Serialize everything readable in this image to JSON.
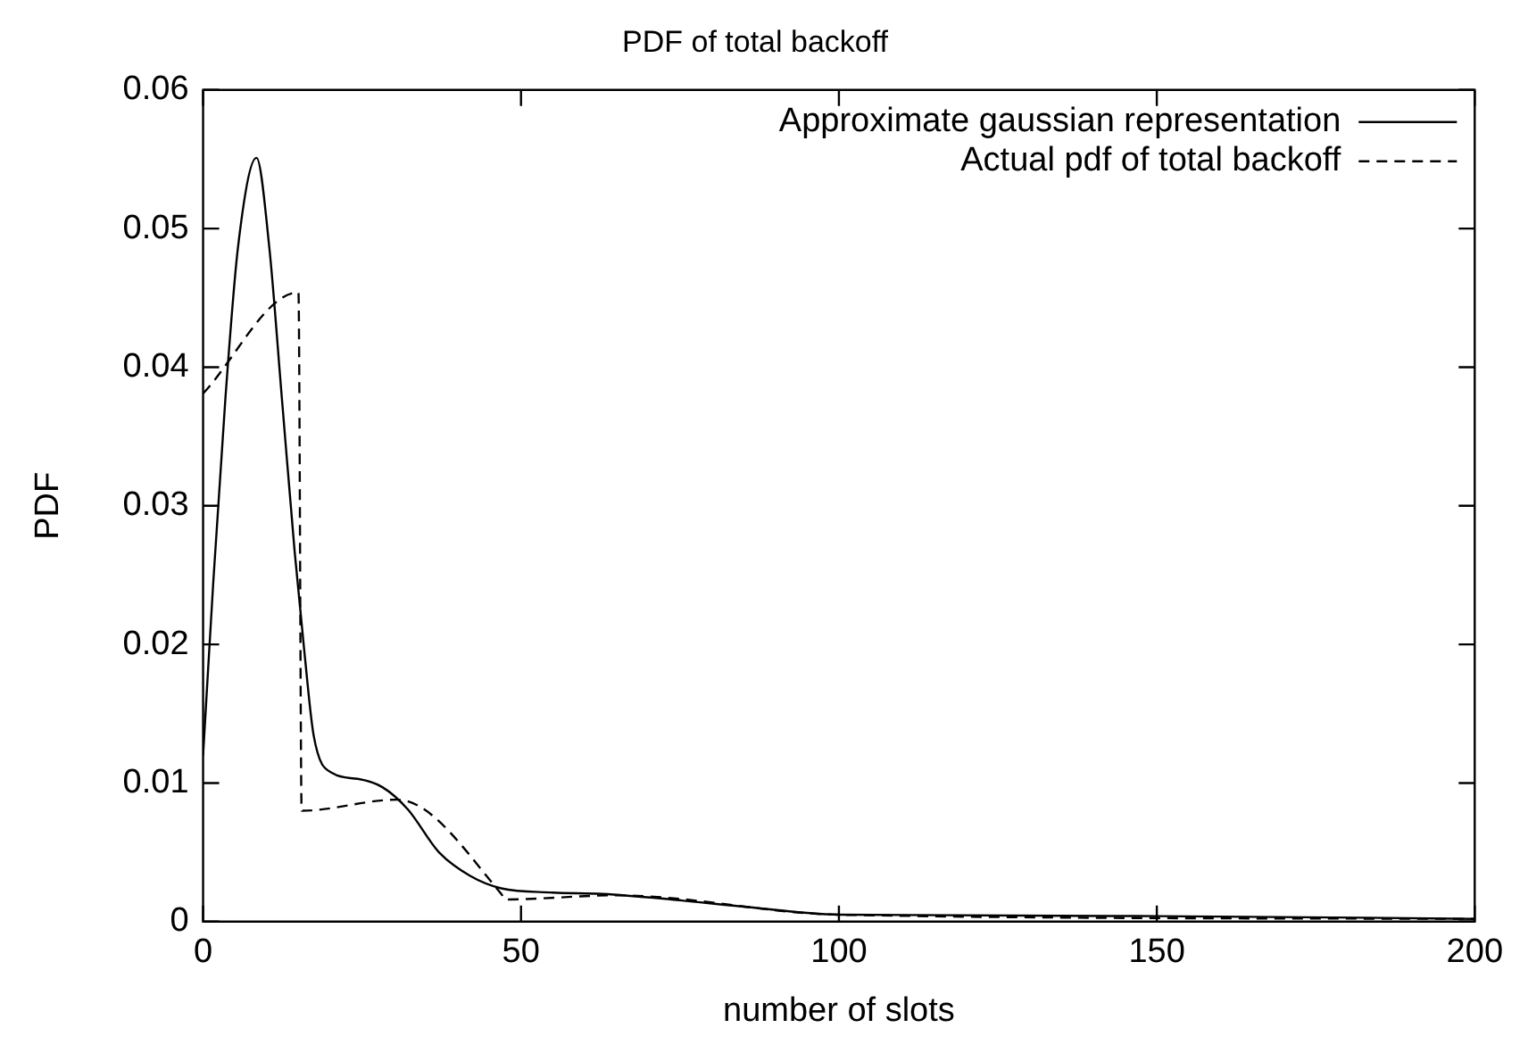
{
  "chart_data": {
    "type": "line",
    "title": "PDF of total backoff",
    "xlabel": "number of slots",
    "ylabel": "PDF",
    "xlim": [
      0,
      200
    ],
    "ylim": [
      0,
      0.06
    ],
    "xticks": [
      0,
      50,
      100,
      150,
      200
    ],
    "yticks": [
      0,
      0.01,
      0.02,
      0.03,
      0.04,
      0.05,
      0.06
    ],
    "grid": false,
    "legend": "top right",
    "marker": "none",
    "series": [
      {
        "name": "Approximate gaussian representation",
        "color": "#000000",
        "line_style": "solid",
        "x": [
          0,
          1.6,
          3.5,
          5.5,
          8.4,
          10.4,
          12.4,
          14.4,
          15.9,
          17.4,
          20.4,
          24.3,
          28.2,
          32.2,
          37.1,
          42,
          46.9,
          55,
          62.8,
          73.7,
          84.6,
          100,
          150,
          200
        ],
        "values": [
          0.012,
          0.0245,
          0.0377,
          0.0487,
          0.0551,
          0.0487,
          0.0377,
          0.0267,
          0.0196,
          0.0134,
          0.0107,
          0.0103,
          0.0097,
          0.0081,
          0.005,
          0.0033,
          0.0024,
          0.0021,
          0.002,
          0.0016,
          0.0011,
          0.0005,
          0.0004,
          0.0002
        ]
      },
      {
        "name": "Actual pdf of total backoff",
        "color": "#000000",
        "line_style": "dashed",
        "x": [
          0,
          15,
          15.5,
          30.5,
          46.9,
          47.5,
          65,
          100,
          200
        ],
        "values": [
          0.0381,
          0.0454,
          0.008,
          0.0088,
          0.002,
          0.0016,
          0.0019,
          0.0005,
          0.0002
        ]
      }
    ]
  }
}
